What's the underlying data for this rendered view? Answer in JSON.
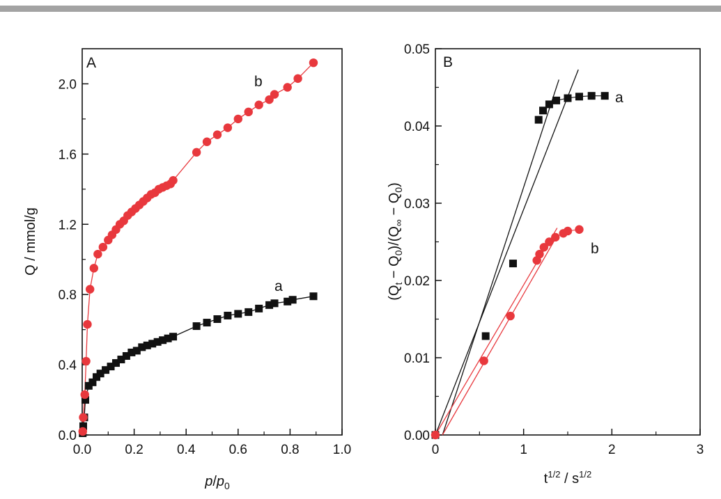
{
  "chart_data": [
    {
      "type": "line",
      "panel": "A",
      "xlabel": "p/p0",
      "ylabel": "Q / mmol/g",
      "xlim": [
        0,
        1.0
      ],
      "ylim": [
        0,
        2.2
      ],
      "xticks": [
        0.0,
        0.2,
        0.4,
        0.6,
        0.8,
        1.0
      ],
      "xtick_labels": [
        "0.0",
        "0.2",
        "0.4",
        "0.6",
        "0.8",
        "1.0"
      ],
      "yticks": [
        0.0,
        0.4,
        0.8,
        1.2,
        1.6,
        2.0
      ],
      "ytick_labels": [
        "0.0",
        "0.4",
        "0.8",
        "1.2",
        "1.6",
        "2.0"
      ],
      "grid": false,
      "series": [
        {
          "name": "a",
          "marker": "square",
          "color": "#111111",
          "points": [
            [
              0.002,
              0.01
            ],
            [
              0.004,
              0.05
            ],
            [
              0.008,
              0.1
            ],
            [
              0.012,
              0.2
            ],
            [
              0.025,
              0.28
            ],
            [
              0.04,
              0.3
            ],
            [
              0.055,
              0.33
            ],
            [
              0.07,
              0.35
            ],
            [
              0.09,
              0.37
            ],
            [
              0.11,
              0.39
            ],
            [
              0.13,
              0.41
            ],
            [
              0.15,
              0.43
            ],
            [
              0.17,
              0.45
            ],
            [
              0.19,
              0.47
            ],
            [
              0.21,
              0.48
            ],
            [
              0.23,
              0.5
            ],
            [
              0.25,
              0.51
            ],
            [
              0.27,
              0.52
            ],
            [
              0.29,
              0.53
            ],
            [
              0.31,
              0.54
            ],
            [
              0.33,
              0.55
            ],
            [
              0.35,
              0.56
            ],
            [
              0.44,
              0.62
            ],
            [
              0.48,
              0.64
            ],
            [
              0.52,
              0.66
            ],
            [
              0.56,
              0.68
            ],
            [
              0.6,
              0.69
            ],
            [
              0.64,
              0.7
            ],
            [
              0.68,
              0.72
            ],
            [
              0.72,
              0.74
            ],
            [
              0.74,
              0.75
            ],
            [
              0.79,
              0.76
            ],
            [
              0.81,
              0.77
            ],
            [
              0.89,
              0.79
            ]
          ]
        },
        {
          "name": "b",
          "marker": "circle",
          "color": "#e8383d",
          "points": [
            [
              0.002,
              0.02
            ],
            [
              0.004,
              0.1
            ],
            [
              0.01,
              0.23
            ],
            [
              0.015,
              0.42
            ],
            [
              0.02,
              0.63
            ],
            [
              0.03,
              0.83
            ],
            [
              0.045,
              0.95
            ],
            [
              0.06,
              1.03
            ],
            [
              0.08,
              1.07
            ],
            [
              0.1,
              1.11
            ],
            [
              0.115,
              1.14
            ],
            [
              0.13,
              1.17
            ],
            [
              0.145,
              1.2
            ],
            [
              0.16,
              1.22
            ],
            [
              0.175,
              1.25
            ],
            [
              0.19,
              1.27
            ],
            [
              0.205,
              1.29
            ],
            [
              0.22,
              1.31
            ],
            [
              0.235,
              1.33
            ],
            [
              0.25,
              1.35
            ],
            [
              0.265,
              1.37
            ],
            [
              0.28,
              1.38
            ],
            [
              0.295,
              1.4
            ],
            [
              0.31,
              1.41
            ],
            [
              0.325,
              1.42
            ],
            [
              0.34,
              1.43
            ],
            [
              0.35,
              1.45
            ],
            [
              0.44,
              1.61
            ],
            [
              0.48,
              1.67
            ],
            [
              0.52,
              1.71
            ],
            [
              0.56,
              1.75
            ],
            [
              0.6,
              1.8
            ],
            [
              0.64,
              1.84
            ],
            [
              0.68,
              1.88
            ],
            [
              0.72,
              1.91
            ],
            [
              0.74,
              1.94
            ],
            [
              0.79,
              1.98
            ],
            [
              0.83,
              2.03
            ],
            [
              0.89,
              2.12
            ]
          ]
        }
      ]
    },
    {
      "type": "scatter",
      "panel": "B",
      "xlabel": "t1/2 / s1/2",
      "ylabel": "(Qt − Q0)/(Q∞ − Q0)",
      "xlim": [
        0,
        3
      ],
      "ylim": [
        0,
        0.05
      ],
      "xticks": [
        0,
        1,
        2,
        3
      ],
      "xtick_labels": [
        "0",
        "1",
        "2",
        "3"
      ],
      "yticks": [
        0.0,
        0.01,
        0.02,
        0.03,
        0.04,
        0.05
      ],
      "ytick_labels": [
        "0.00",
        "0.01",
        "0.02",
        "0.03",
        "0.04",
        "0.05"
      ],
      "grid": false,
      "series": [
        {
          "name": "a",
          "marker": "square",
          "color": "#111111",
          "points": [
            [
              0.0,
              0.0
            ],
            [
              0.57,
              0.0128
            ],
            [
              0.88,
              0.0222
            ],
            [
              1.17,
              0.0408
            ],
            [
              1.22,
              0.042
            ],
            [
              1.29,
              0.0428
            ],
            [
              1.37,
              0.0433
            ],
            [
              1.5,
              0.0436
            ],
            [
              1.63,
              0.0438
            ],
            [
              1.77,
              0.0439
            ],
            [
              1.92,
              0.0439
            ]
          ]
        },
        {
          "name": "b",
          "marker": "circle",
          "color": "#e8383d",
          "points": [
            [
              0.0,
              0.0
            ],
            [
              0.55,
              0.0096
            ],
            [
              0.85,
              0.0154
            ],
            [
              1.15,
              0.0226
            ],
            [
              1.18,
              0.0234
            ],
            [
              1.23,
              0.0243
            ],
            [
              1.29,
              0.025
            ],
            [
              1.36,
              0.0256
            ],
            [
              1.45,
              0.0261
            ],
            [
              1.5,
              0.0264
            ],
            [
              1.63,
              0.0266
            ]
          ]
        }
      ],
      "fit_lines": [
        {
          "color": "#111111",
          "from": [
            0.0,
            0.0
          ],
          "to": [
            1.62,
            0.0473
          ]
        },
        {
          "color": "#111111",
          "from": [
            0.08,
            0.0
          ],
          "to": [
            1.4,
            0.046
          ]
        },
        {
          "color": "#e8383d",
          "from": [
            0.0,
            0.0
          ],
          "to": [
            1.38,
            0.0268
          ]
        },
        {
          "color": "#e8383d",
          "from": [
            0.08,
            0.0
          ],
          "to": [
            1.38,
            0.0258
          ]
        }
      ]
    }
  ],
  "panels": {
    "a": {
      "letter": "A",
      "label_b": "b",
      "label_a": "a",
      "xlabel_main": "p",
      "xlabel_den": "p",
      "xlabel_sub": "0",
      "ylabel": "Q / mmol/g"
    },
    "b": {
      "letter": "B",
      "label_a": "a",
      "label_b": "b",
      "xlabel_t": "t",
      "xlabel_sup1": "1/2",
      "xlabel_mid": " / s",
      "xlabel_sup2": "1/2",
      "ylabel_p1": "(Q",
      "ylabel_s1": "t",
      "ylabel_p2": " − Q",
      "ylabel_s2": "0",
      "ylabel_p3": ")/(Q",
      "ylabel_s3": "∞",
      "ylabel_p4": " − Q",
      "ylabel_s4": "0",
      "ylabel_p5": ")"
    }
  }
}
